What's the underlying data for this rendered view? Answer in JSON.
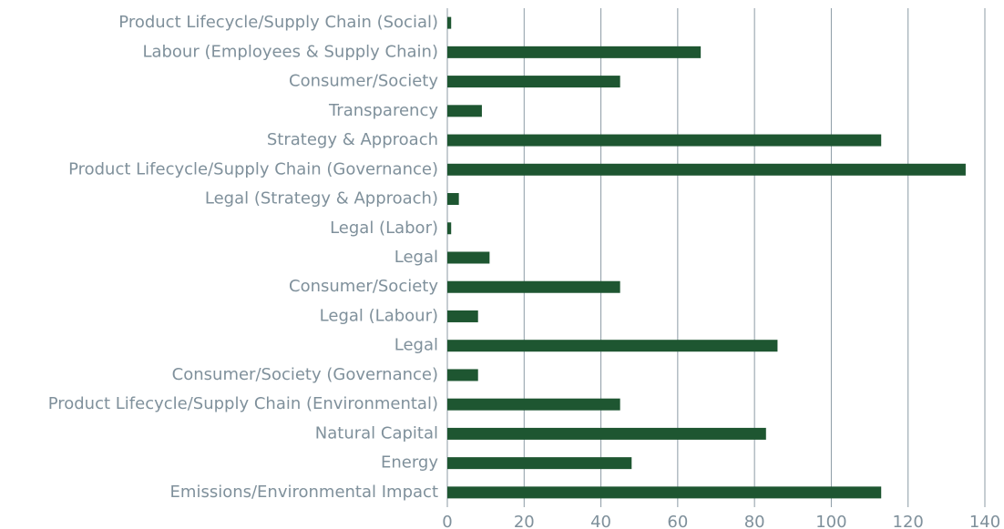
{
  "chart_data": {
    "type": "barh",
    "categories": [
      "Product Lifecycle/Supply Chain (Social)",
      "Labour (Employees & Supply Chain)",
      "Consumer/Society",
      "Transparency",
      "Strategy & Approach",
      "Product Lifecycle/Supply Chain (Governance)",
      "Legal (Strategy & Approach)",
      "Legal (Labor)",
      "Legal",
      "Consumer/Society",
      "Legal (Labour)",
      "Legal",
      "Consumer/Society (Governance)",
      "Product Lifecycle/Supply Chain (Environmental)",
      "Natural Capital",
      "Energy",
      "Emissions/Environmental Impact"
    ],
    "values": [
      1,
      66,
      45,
      9,
      113,
      135,
      3,
      1,
      11,
      45,
      8,
      86,
      8,
      45,
      83,
      48,
      113
    ],
    "color": "#1e5631",
    "xlim": [
      0,
      140
    ],
    "xticks": [
      0,
      20,
      40,
      60,
      80,
      100,
      120,
      140
    ],
    "grid": true
  }
}
